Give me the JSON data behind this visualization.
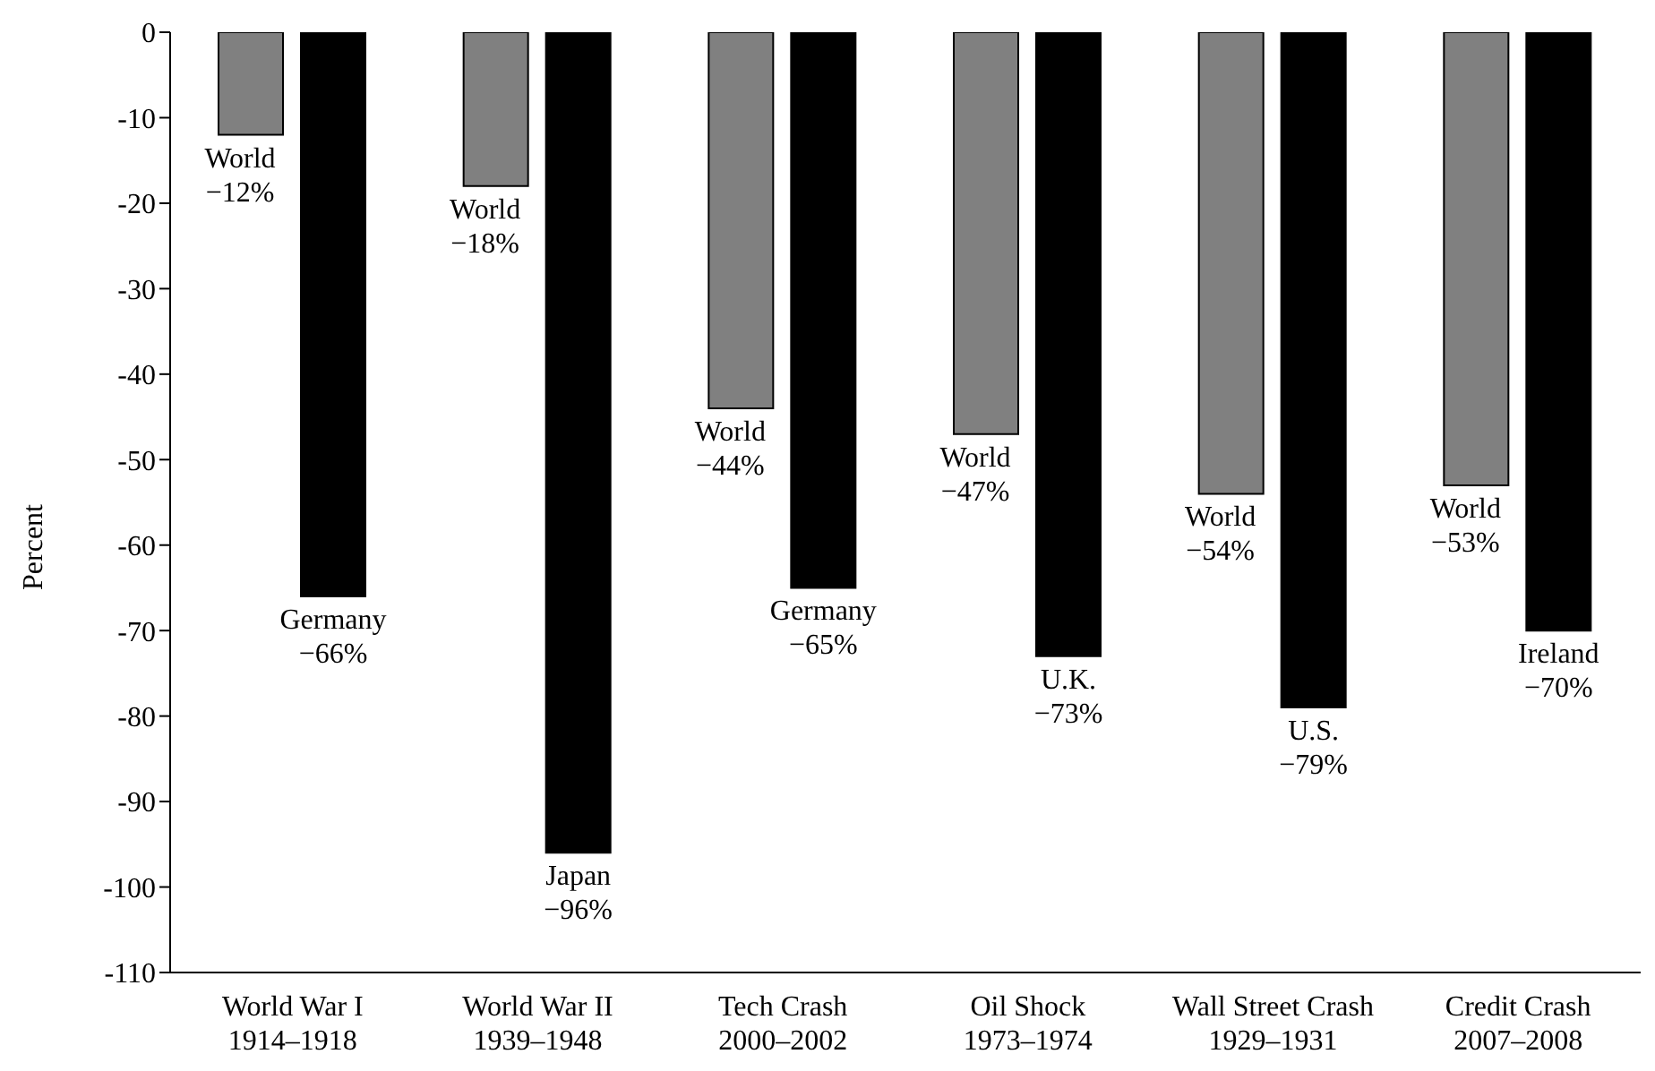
{
  "chart_data": {
    "type": "bar",
    "ylabel": "Percent",
    "categories": [
      "World War I\n1914–1918",
      "World War II\n1939–1948",
      "Tech Crash\n2000–2002",
      "Oil Shock\n1973–1974",
      "Wall Street Crash\n1929–1931",
      "Credit Crash\n2007–2008"
    ],
    "series": [
      {
        "color": "#808080",
        "values": [
          -12,
          -18,
          -44,
          -47,
          -54,
          -53
        ],
        "value_labels": [
          "World\n−12%",
          "World\n−18%",
          "World\n−44%",
          "World\n−47%",
          "World\n−54%",
          "World\n−53%"
        ]
      },
      {
        "color": "#000000",
        "values": [
          -66,
          -96,
          -65,
          -73,
          -79,
          -70
        ],
        "value_labels": [
          "Germany\n−66%",
          "Japan\n−96%",
          "Germany\n−65%",
          "U.K.\n−73%",
          "U.S.\n−79%",
          "Ireland\n−70%"
        ]
      }
    ],
    "ylim": [
      -110,
      0
    ],
    "yticks": [
      -110,
      -100,
      -90,
      -80,
      -70,
      -60,
      -50,
      -40,
      -30,
      -20,
      -10,
      0
    ],
    "grid": false,
    "legend": false
  }
}
